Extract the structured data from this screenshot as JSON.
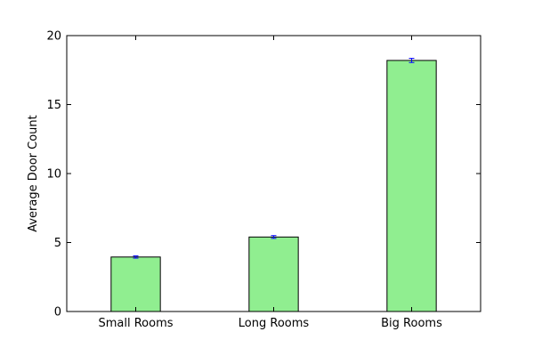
{
  "chart_data": {
    "type": "bar",
    "categories": [
      "Small Rooms",
      "Long Rooms",
      "Big Rooms"
    ],
    "values": [
      3.95,
      5.4,
      18.2
    ],
    "errors": [
      0.08,
      0.1,
      0.15
    ],
    "title": "",
    "xlabel": "",
    "ylabel": "Average Door Count",
    "ylim": [
      0,
      20
    ],
    "yticks": [
      "0",
      "5",
      "10",
      "15",
      "20"
    ],
    "grid": false,
    "legend": "none",
    "colors": {
      "bar": "#90ee90",
      "edge": "#000000",
      "errorbar": "#0000ff"
    }
  }
}
